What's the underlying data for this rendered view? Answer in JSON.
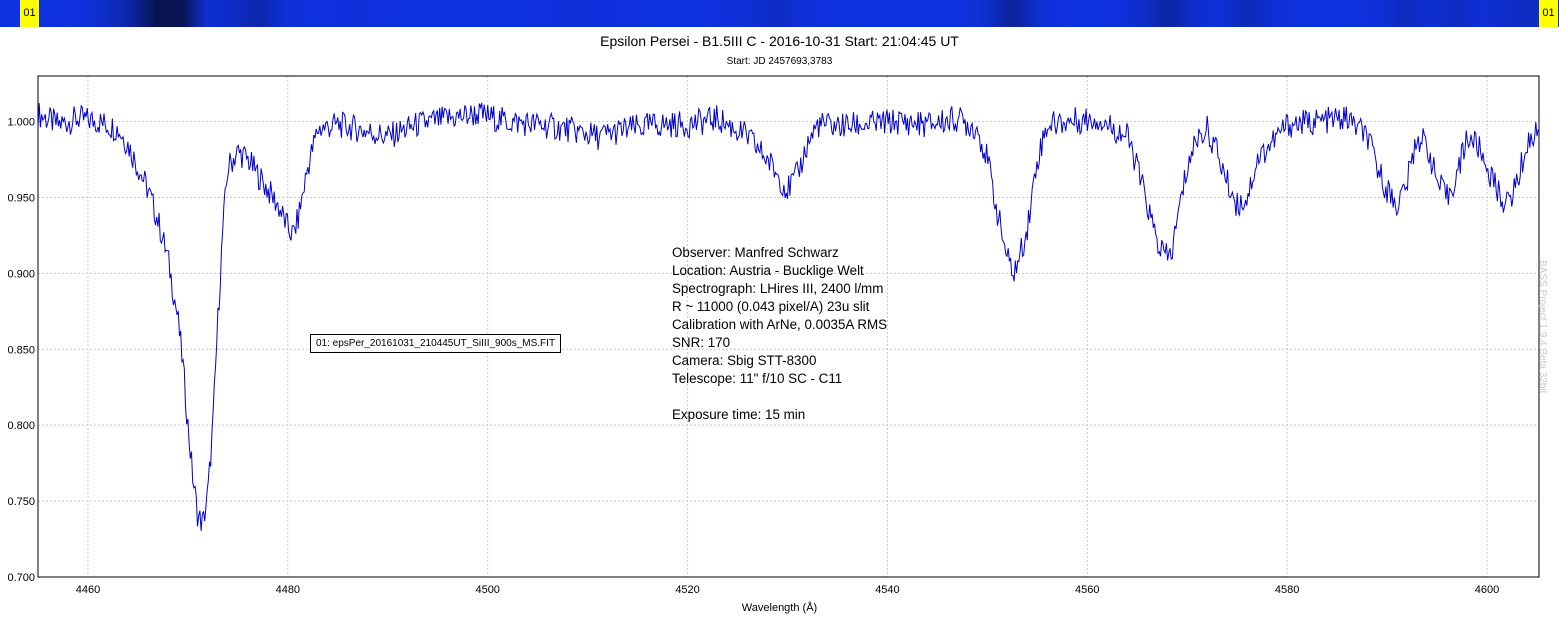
{
  "strip": {
    "left_label": "01",
    "right_label": "01"
  },
  "watermark": "BASS Project 1.9.4 Beta 32bit",
  "info_lines": [
    "Observer: Manfred Schwarz",
    "Location: Austria - Bucklige Welt",
    "Spectrograph: LHires III, 2400 l/mm",
    "R ~ 11000 (0.043 pixel/A) 23u slit",
    "Calibration with ArNe, 0.0035A RMS",
    "SNR: 170",
    "Camera: Sbig STT-8300",
    "Telescope: 11\" f/10 SC - C11",
    "",
    "Exposure time: 15 min"
  ],
  "colors": {
    "series": "#0000cc",
    "strip_base": "#0a2ad6",
    "label_bg": "#ffff00",
    "grid": "#c8c8c8"
  },
  "chart_data": {
    "type": "line",
    "title": "Epsilon Persei - B1.5III C - 2016-10-31 Start: 21:04:45 UT",
    "subtitle": "Start: JD 2457693,3783",
    "xlabel": "Wavelength (Å)",
    "ylabel": "",
    "xlim": [
      4455,
      4605.2
    ],
    "ylim": [
      0.7,
      1.03
    ],
    "xticks": [
      4460,
      4480,
      4500,
      4520,
      4540,
      4560,
      4580,
      4600
    ],
    "yticks": [
      0.7,
      0.75,
      0.8,
      0.85,
      0.9,
      0.95,
      1.0
    ],
    "ytick_labels": [
      "0.700",
      "0.750",
      "0.800",
      "0.850",
      "0.900",
      "0.950",
      "1.000"
    ],
    "grid": true,
    "legend_position": "center-left",
    "series": [
      {
        "name": "01: epsPer_20161031_210445UT_SiIII_900s_MS.FIT",
        "x": [
          4455,
          4457,
          4459,
          4461,
          4463,
          4464,
          4465,
          4466,
          4467,
          4468,
          4469,
          4469.5,
          4470,
          4470.5,
          4471,
          4471.5,
          4472,
          4472.5,
          4473,
          4473.5,
          4474,
          4475,
          4476,
          4477,
          4478,
          4479,
          4480,
          4480.5,
          4481,
          4482,
          4483,
          4485,
          4487,
          4490,
          4493,
          4496,
          4499,
          4502,
          4505,
          4508,
          4511,
          4514,
          4517,
          4520,
          4523,
          4526,
          4528,
          4529,
          4530,
          4531,
          4532,
          4533,
          4535,
          4538,
          4541,
          4544,
          4547,
          4549,
          4550,
          4551,
          4552,
          4552.5,
          4553,
          4554,
          4555,
          4556,
          4558,
          4561,
          4564,
          4565,
          4566,
          4567,
          4568,
          4568.5,
          4569,
          4570,
          4571,
          4572,
          4573,
          4574,
          4575,
          4576,
          4577,
          4580,
          4583,
          4586,
          4588,
          4589,
          4590,
          4591,
          4592,
          4593,
          4594,
          4595,
          4596,
          4597,
          4598,
          4599,
          4600,
          4601,
          4602,
          4603,
          4604,
          4605.2
        ],
        "y": [
          1.005,
          0.998,
          1.002,
          1.0,
          0.995,
          0.985,
          0.97,
          0.955,
          0.935,
          0.91,
          0.87,
          0.84,
          0.8,
          0.765,
          0.74,
          0.735,
          0.755,
          0.8,
          0.87,
          0.93,
          0.97,
          0.98,
          0.975,
          0.965,
          0.955,
          0.945,
          0.93,
          0.925,
          0.935,
          0.97,
          0.995,
          0.998,
          0.995,
          0.99,
          0.998,
          1.002,
          1.005,
          1.0,
          0.998,
          0.995,
          0.99,
          0.995,
          0.998,
          0.998,
          1.002,
          0.99,
          0.975,
          0.965,
          0.955,
          0.965,
          0.985,
          0.998,
          0.997,
          0.998,
          1.0,
          0.998,
          1.002,
          0.995,
          0.975,
          0.94,
          0.91,
          0.9,
          0.905,
          0.93,
          0.975,
          0.998,
          1.0,
          1.002,
          0.99,
          0.97,
          0.945,
          0.92,
          0.91,
          0.915,
          0.935,
          0.97,
          0.99,
          0.995,
          0.98,
          0.96,
          0.945,
          0.95,
          0.975,
          0.998,
          1.0,
          1.002,
          0.99,
          0.97,
          0.955,
          0.945,
          0.96,
          0.99,
          0.985,
          0.96,
          0.95,
          0.965,
          0.99,
          0.985,
          0.97,
          0.955,
          0.945,
          0.96,
          0.985,
          0.995
        ]
      }
    ]
  }
}
